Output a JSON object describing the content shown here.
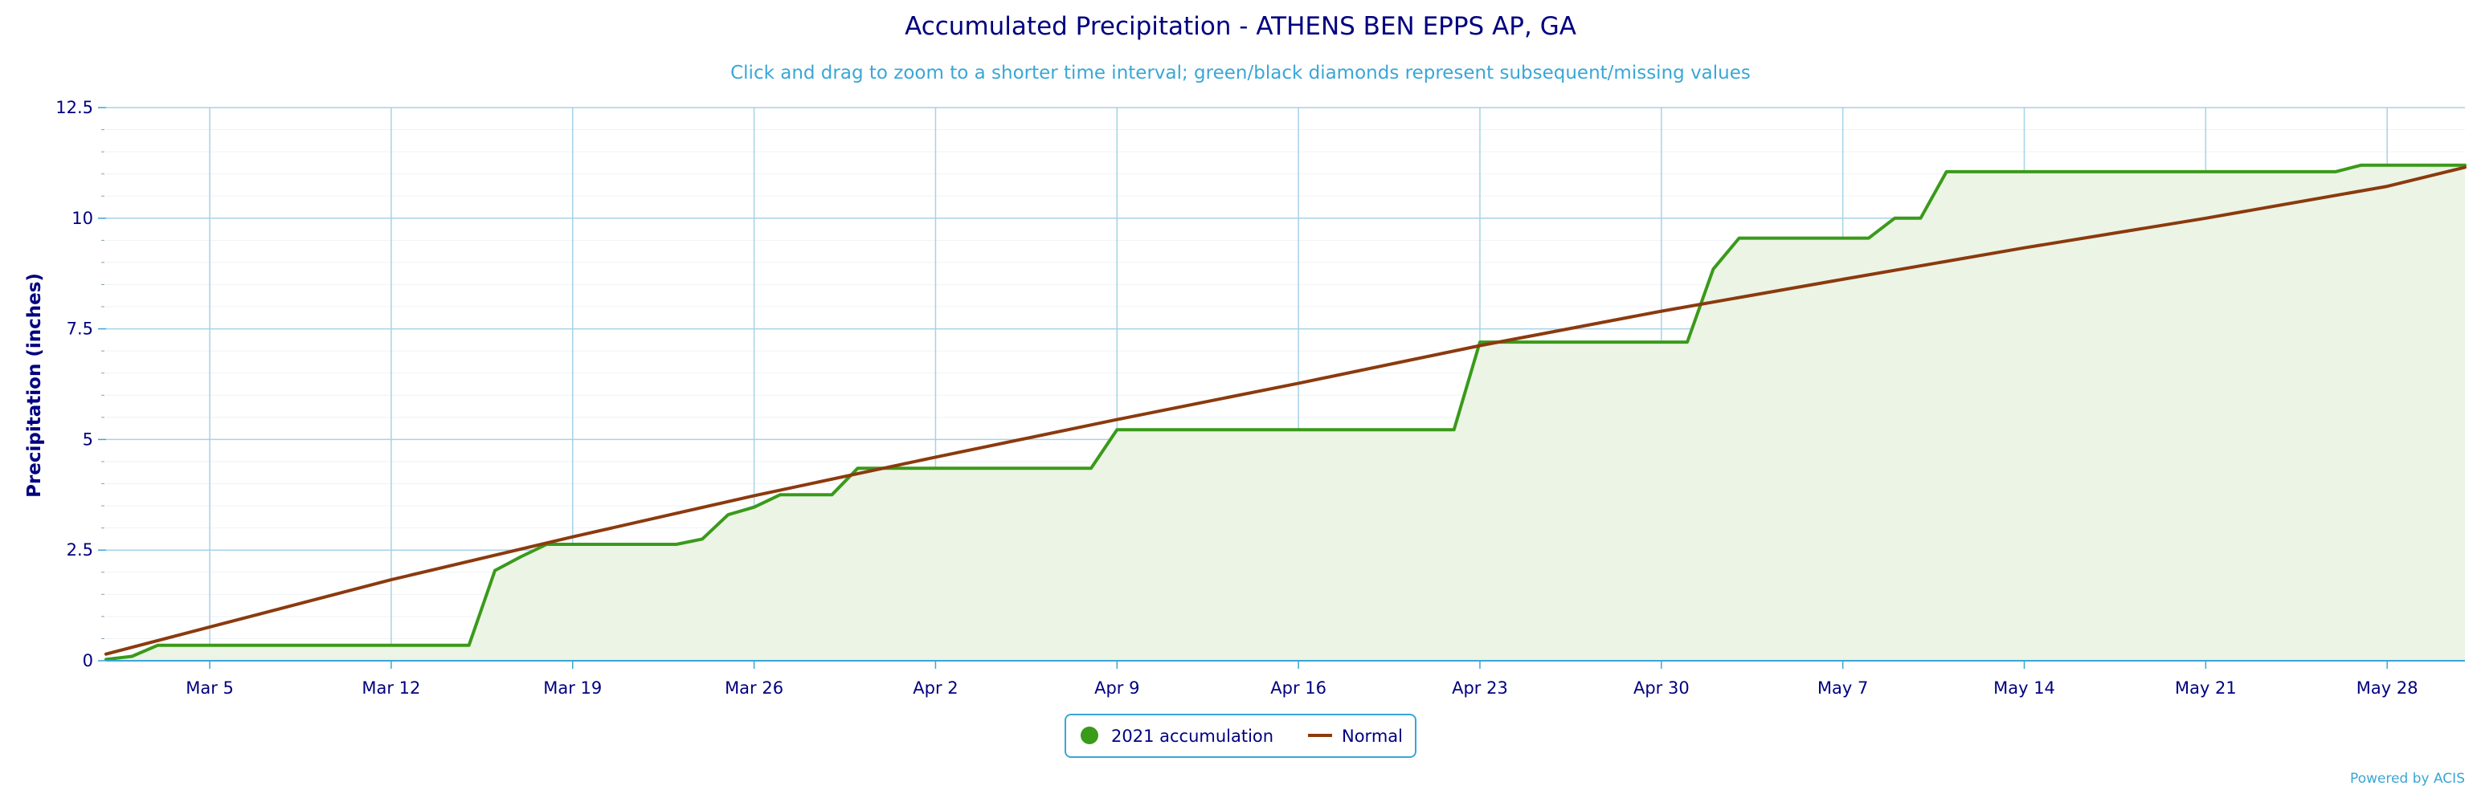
{
  "chart_data": {
    "type": "line",
    "title": "Accumulated Precipitation - ATHENS BEN EPPS AP, GA",
    "subtitle": "Click and drag to zoom to a shorter time interval; green/black diamonds represent subsequent/missing values",
    "xlabel": "",
    "ylabel": "Precipitation (inches)",
    "ylim": [
      0,
      12.5
    ],
    "yticks": [
      "0",
      "2.5",
      "5",
      "7.5",
      "10",
      "12.5"
    ],
    "ytick_values": [
      0,
      2.5,
      5,
      7.5,
      10,
      12.5
    ],
    "xlim": [
      "2021-03-01",
      "2021-05-31"
    ],
    "xtick_labels": [
      "Mar 5",
      "Mar 12",
      "Mar 19",
      "Mar 26",
      "Apr 2",
      "Apr 9",
      "Apr 16",
      "Apr 23",
      "Apr 30",
      "May 7",
      "May 14",
      "May 21",
      "May 28"
    ],
    "xtick_dates": [
      "2021-03-05",
      "2021-03-12",
      "2021-03-19",
      "2021-03-26",
      "2021-04-02",
      "2021-04-09",
      "2021-04-16",
      "2021-04-23",
      "2021-04-30",
      "2021-05-07",
      "2021-05-14",
      "2021-05-21",
      "2021-05-28"
    ],
    "grid": true,
    "legend_position": "bottom-center",
    "series": [
      {
        "name": "2021 accumulation",
        "color": "#3a9a1a",
        "fill": "#ecf4e6",
        "style": "area-line",
        "points": [
          [
            "2021-03-01",
            0.03
          ],
          [
            "2021-03-02",
            0.1
          ],
          [
            "2021-03-03",
            0.35
          ],
          [
            "2021-03-15",
            0.35
          ],
          [
            "2021-03-16",
            2.04
          ],
          [
            "2021-03-17",
            2.35
          ],
          [
            "2021-03-18",
            2.63
          ],
          [
            "2021-03-23",
            2.63
          ],
          [
            "2021-03-24",
            2.75
          ],
          [
            "2021-03-25",
            3.3
          ],
          [
            "2021-03-26",
            3.47
          ],
          [
            "2021-03-27",
            3.75
          ],
          [
            "2021-03-29",
            3.75
          ],
          [
            "2021-03-30",
            4.35
          ],
          [
            "2021-04-08",
            4.35
          ],
          [
            "2021-04-09",
            5.22
          ],
          [
            "2021-04-22",
            5.22
          ],
          [
            "2021-04-23",
            7.2
          ],
          [
            "2021-05-01",
            7.2
          ],
          [
            "2021-05-02",
            8.85
          ],
          [
            "2021-05-03",
            9.55
          ],
          [
            "2021-05-08",
            9.55
          ],
          [
            "2021-05-09",
            10.0
          ],
          [
            "2021-05-10",
            10.0
          ],
          [
            "2021-05-11",
            11.05
          ],
          [
            "2021-05-26",
            11.05
          ],
          [
            "2021-05-27",
            11.2
          ],
          [
            "2021-05-31",
            11.2
          ]
        ]
      },
      {
        "name": "Normal",
        "color": "#8b3a0e",
        "style": "line",
        "points": [
          [
            "2021-03-01",
            0.15
          ],
          [
            "2021-03-12",
            1.83
          ],
          [
            "2021-03-19",
            2.8
          ],
          [
            "2021-03-26",
            3.73
          ],
          [
            "2021-04-02",
            4.6
          ],
          [
            "2021-04-09",
            5.45
          ],
          [
            "2021-04-16",
            6.27
          ],
          [
            "2021-04-23",
            7.12
          ],
          [
            "2021-04-30",
            7.9
          ],
          [
            "2021-05-07",
            8.62
          ],
          [
            "2021-05-14",
            9.33
          ],
          [
            "2021-05-21",
            10.0
          ],
          [
            "2021-05-28",
            10.72
          ],
          [
            "2021-05-31",
            11.15
          ]
        ]
      }
    ]
  },
  "legend": {
    "items": [
      {
        "label": "2021 accumulation",
        "color": "#3a9a1a",
        "symbol": "circle"
      },
      {
        "label": "Normal",
        "color": "#8b3a0e",
        "symbol": "line"
      }
    ]
  },
  "credit": "Powered by ACIS"
}
